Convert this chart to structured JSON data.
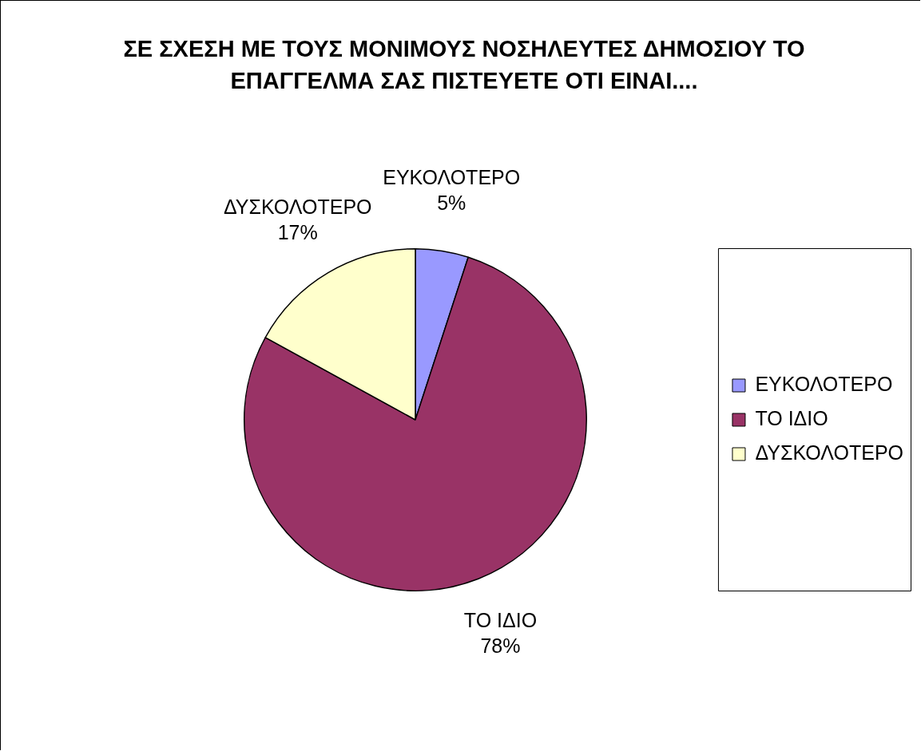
{
  "chart_data": {
    "type": "pie",
    "title": "ΣΕ ΣΧΕΣΗ ΜΕ ΤΟΥΣ ΜΟΝΙΜΟΥΣ ΝΟΣΗΛΕΥΤΕΣ ΔΗΜΟΣΙΟΥ ΤΟ ΕΠΑΓΓΕΛΜΑ ΣΑΣ ΠΙΣΤΕΥΕΤΕ ΟΤΙ ΕΙΝΑΙ....",
    "categories": [
      "ΕΥΚΟΛΟΤΕΡΟ",
      "ΤΟ ΙΔΙΟ",
      "ΔΥΣΚΟΛΟΤΕΡΟ"
    ],
    "values": [
      5,
      78,
      17
    ],
    "value_labels": [
      "5%",
      "78%",
      "17%"
    ],
    "colors": [
      "#9999ff",
      "#993366",
      "#ffffcc"
    ],
    "legend": "right"
  }
}
